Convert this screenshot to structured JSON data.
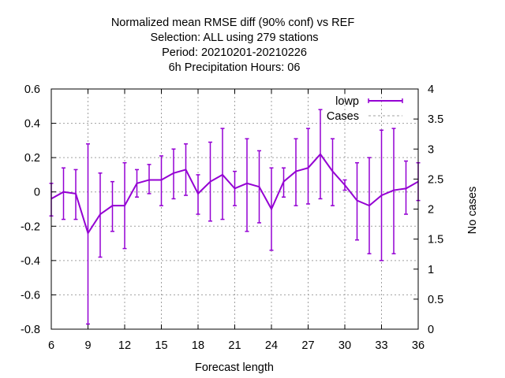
{
  "chart_data": {
    "type": "line",
    "title_lines": [
      "Normalized mean RMSE diff (90% conf) vs REF",
      "Selection: ALL using   279 stations",
      "Period: 20210201-20210226",
      "6h Precipitation   Hours:  06"
    ],
    "xlabel": "Forecast length",
    "ylabel": "",
    "y2label": "No cases",
    "xlim": [
      6,
      36
    ],
    "ylim": [
      -0.8,
      0.6
    ],
    "y2lim": [
      0,
      4
    ],
    "xticks": [
      6,
      9,
      12,
      15,
      18,
      21,
      24,
      27,
      30,
      33,
      36
    ],
    "yticks": [
      -0.8,
      -0.6,
      -0.4,
      -0.2,
      0,
      0.2,
      0.4,
      0.6
    ],
    "ytick_labels": [
      "-0.8",
      "-0.6",
      "-0.4",
      "-0.2",
      "0",
      "0.2",
      "0.4",
      "0.6"
    ],
    "y2ticks": [
      0,
      0.5,
      1,
      1.5,
      2,
      2.5,
      3,
      3.5,
      4
    ],
    "y2tick_labels": [
      "0",
      "0.5",
      "1",
      "1.5",
      "2",
      "2.5",
      "3",
      "3.5",
      "4"
    ],
    "grid": true,
    "legend_position": "top-right",
    "series": [
      {
        "name": "lowp",
        "color": "#9400d3",
        "style": "line-with-errorbars",
        "x": [
          6,
          7,
          8,
          9,
          10,
          11,
          12,
          13,
          14,
          15,
          16,
          17,
          18,
          19,
          20,
          21,
          22,
          23,
          24,
          25,
          26,
          27,
          28,
          29,
          30,
          31,
          32,
          33,
          34,
          35,
          36
        ],
        "y": [
          -0.04,
          0.0,
          -0.01,
          -0.24,
          -0.13,
          -0.08,
          -0.08,
          0.05,
          0.07,
          0.07,
          0.11,
          0.13,
          -0.01,
          0.06,
          0.1,
          0.02,
          0.05,
          0.03,
          -0.1,
          0.06,
          0.12,
          0.14,
          0.22,
          0.12,
          0.04,
          -0.05,
          -0.08,
          -0.02,
          0.01,
          0.02,
          0.06
        ],
        "y_low": [
          -0.14,
          -0.16,
          -0.16,
          -0.77,
          -0.38,
          -0.23,
          -0.33,
          -0.03,
          -0.01,
          -0.08,
          -0.04,
          -0.02,
          -0.13,
          -0.17,
          -0.16,
          -0.08,
          -0.23,
          -0.18,
          -0.34,
          -0.03,
          -0.08,
          -0.07,
          -0.04,
          -0.08,
          0.01,
          -0.28,
          -0.36,
          -0.4,
          -0.36,
          -0.13,
          -0.05
        ],
        "y_high": [
          0.05,
          0.14,
          0.13,
          0.28,
          0.11,
          0.06,
          0.17,
          0.13,
          0.16,
          0.21,
          0.25,
          0.28,
          0.1,
          0.29,
          0.37,
          0.12,
          0.31,
          0.24,
          0.14,
          0.14,
          0.31,
          0.37,
          0.48,
          0.31,
          0.07,
          0.17,
          0.2,
          0.36,
          0.37,
          0.18,
          0.17
        ]
      },
      {
        "name": "Cases",
        "color": "#a0a0a0",
        "style": "dashed",
        "axis": "y2",
        "x": [],
        "y": []
      }
    ]
  }
}
